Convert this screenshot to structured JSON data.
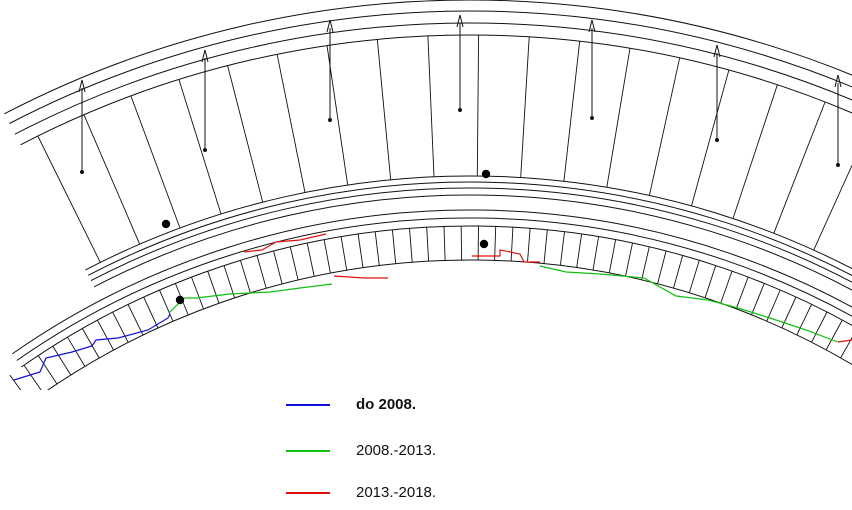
{
  "legend": {
    "items": [
      {
        "label": "do 2008.",
        "color": "#1010d8",
        "bold": true
      },
      {
        "label": "2008.-2013.",
        "color": "#10c010",
        "bold": false
      },
      {
        "label": "2013.-2018.",
        "color": "#e01010",
        "bold": false
      }
    ]
  },
  "colors": {
    "linework": "#111111",
    "marker": "#000000"
  }
}
